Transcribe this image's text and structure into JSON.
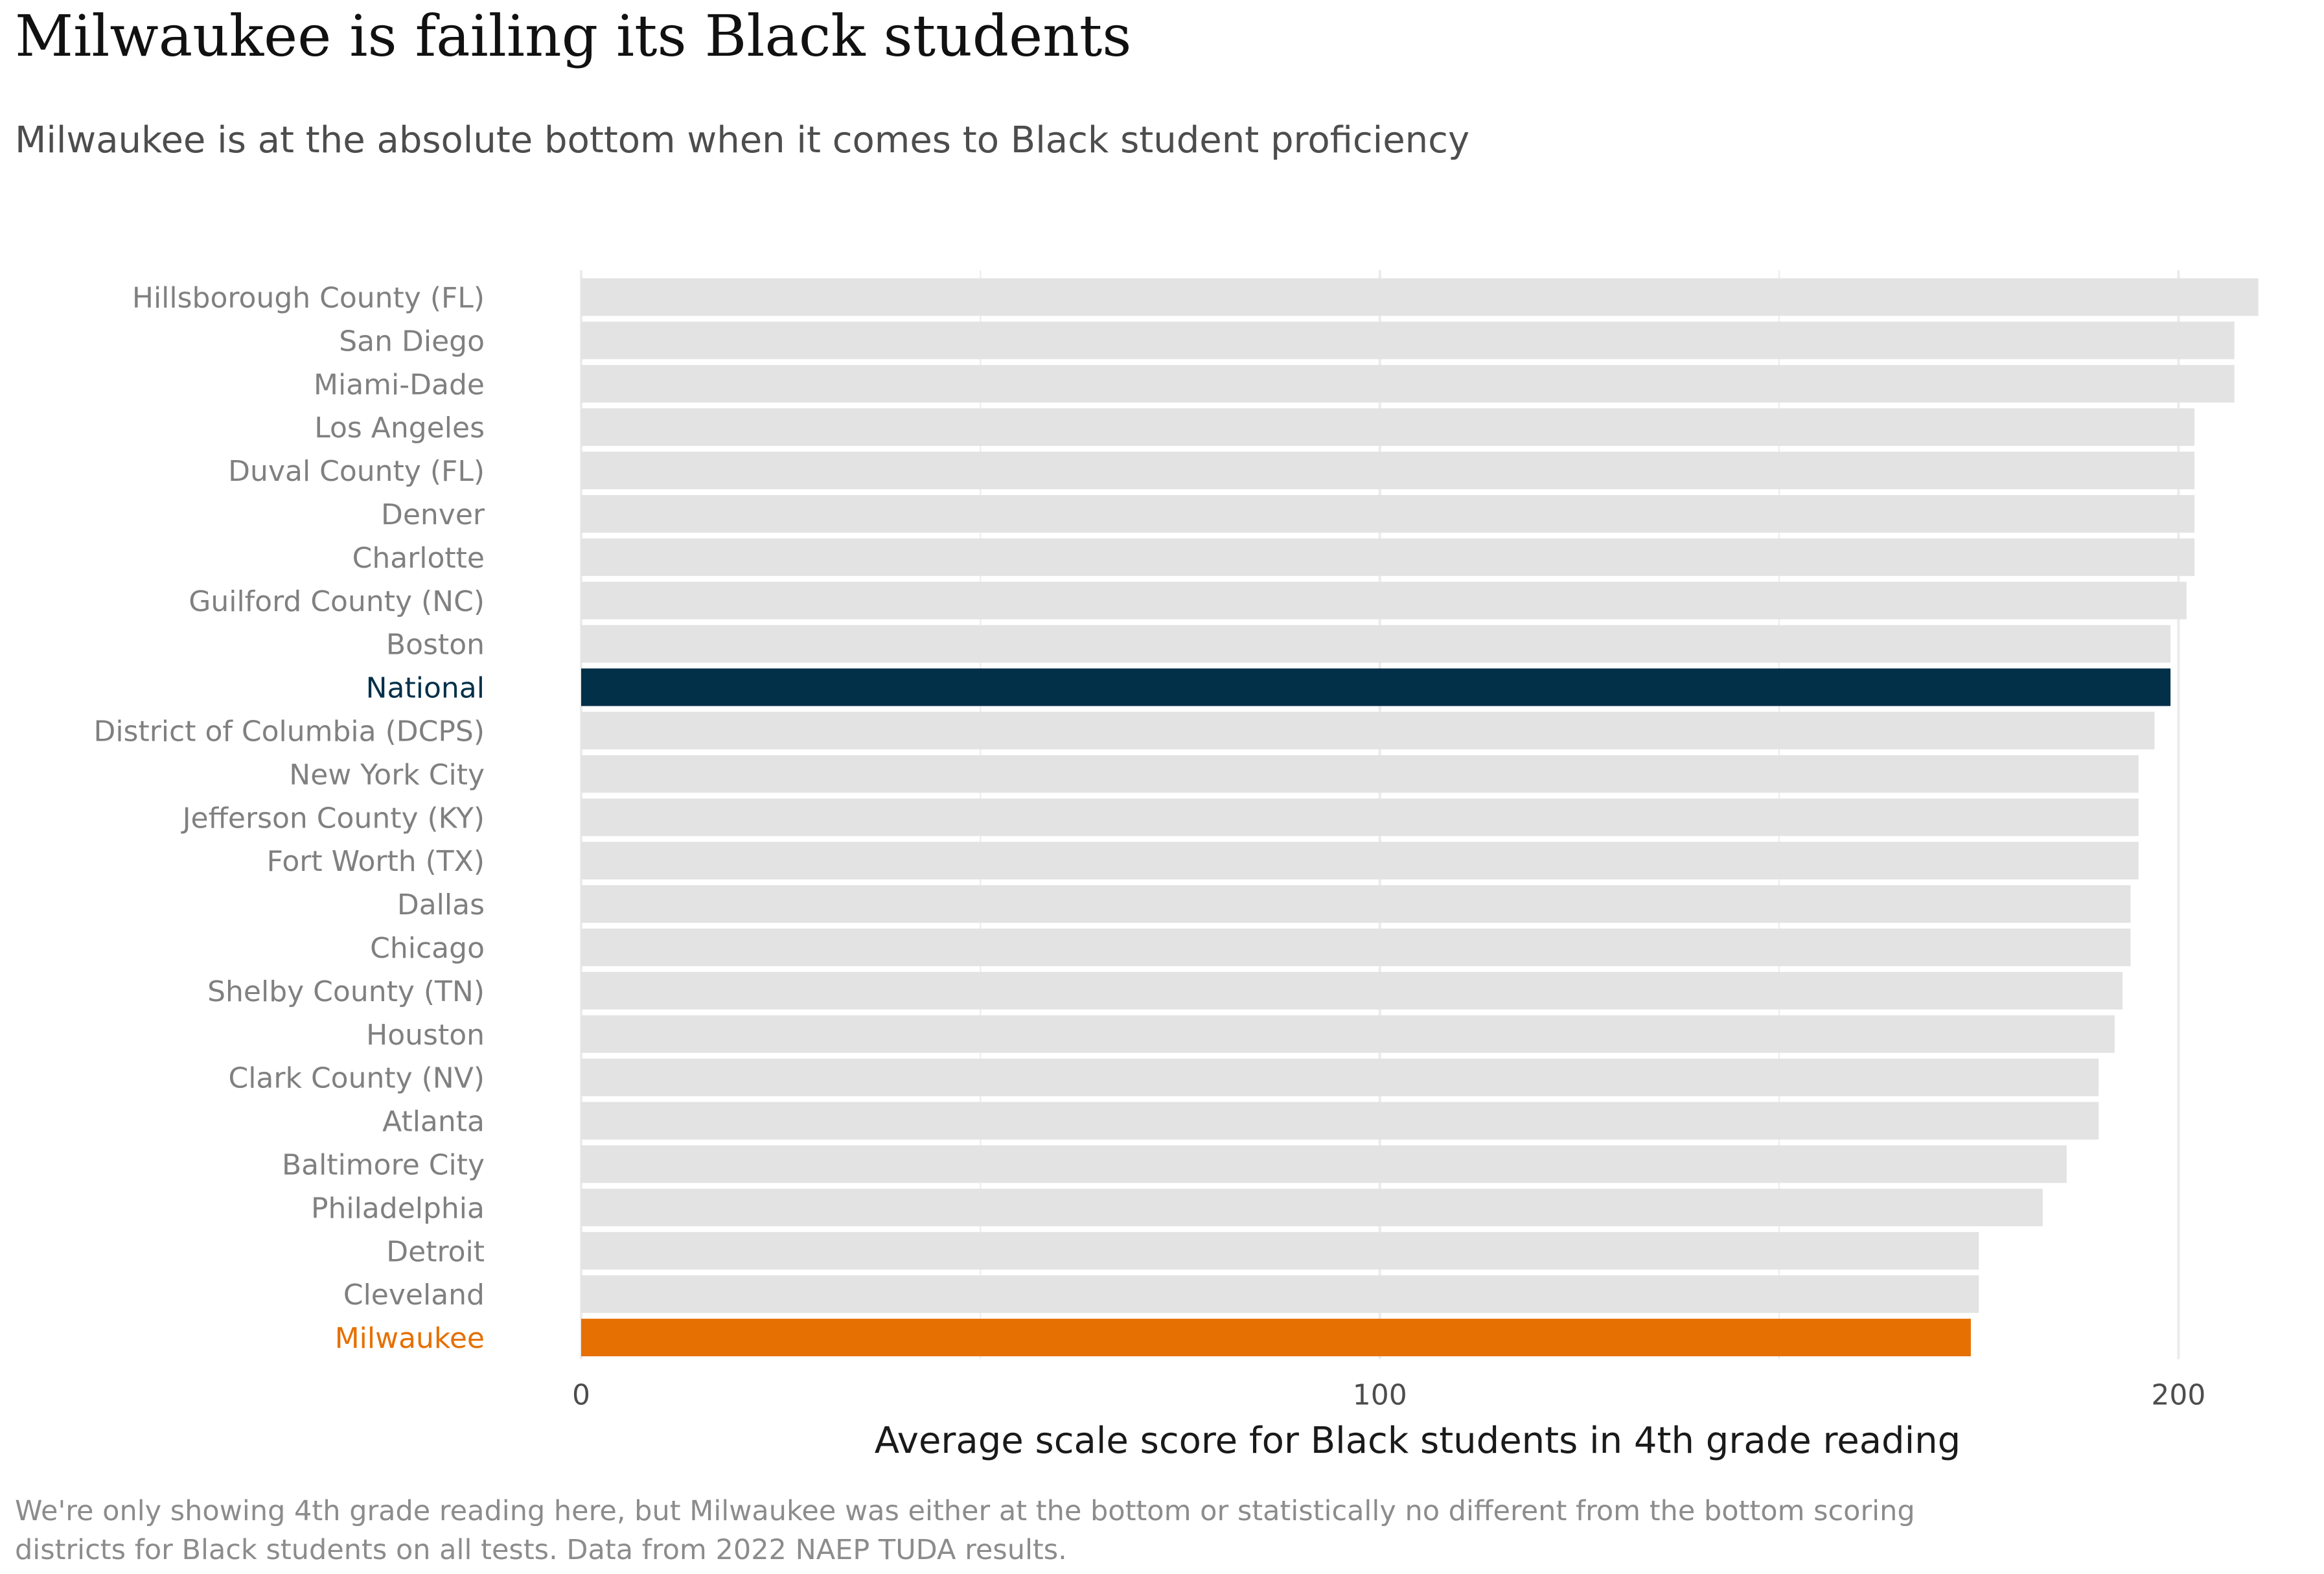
{
  "title": "Milwaukee is failing its Black students",
  "subtitle": "Milwaukee is at the absolute bottom when it comes to Black student proficiency",
  "footnote": "We're only showing 4th grade reading here, but Milwaukee was either at the bottom or statistically no different from the bottom scoring districts for Black students on all tests. Data from 2022 NAEP TUDA results.",
  "colors": {
    "default_bar": "#e3e3e3",
    "national_bar": "#033049",
    "milwaukee_bar": "#e67001",
    "label_text": "#808080",
    "grid": "#ebebeb",
    "axis_text": "#4d4d4d"
  },
  "chart_data": {
    "type": "bar",
    "orientation": "horizontal",
    "xlabel": "Average scale score for Black students in 4th grade reading",
    "ylabel": "",
    "xlim": [
      0,
      214
    ],
    "xticks": [
      0,
      100,
      200
    ],
    "grid": true,
    "categories": [
      "Hillsborough County (FL)",
      "San Diego",
      "Miami-Dade",
      "Los Angeles",
      "Duval County (FL)",
      "Denver",
      "Charlotte",
      "Guilford County (NC)",
      "Boston",
      "National",
      "District of Columbia (DCPS)",
      "New York City",
      "Jefferson County (KY)",
      "Fort Worth (TX)",
      "Dallas",
      "Chicago",
      "Shelby County (TN)",
      "Houston",
      "Clark County (NV)",
      "Atlanta",
      "Baltimore City",
      "Philadelphia",
      "Detroit",
      "Cleveland",
      "Milwaukee"
    ],
    "values": [
      210,
      207,
      207,
      202,
      202,
      202,
      202,
      201,
      199,
      199,
      197,
      195,
      195,
      195,
      194,
      194,
      193,
      192,
      190,
      190,
      186,
      183,
      175,
      175,
      174
    ],
    "highlight": {
      "National": "#033049",
      "Milwaukee": "#e67001"
    }
  }
}
